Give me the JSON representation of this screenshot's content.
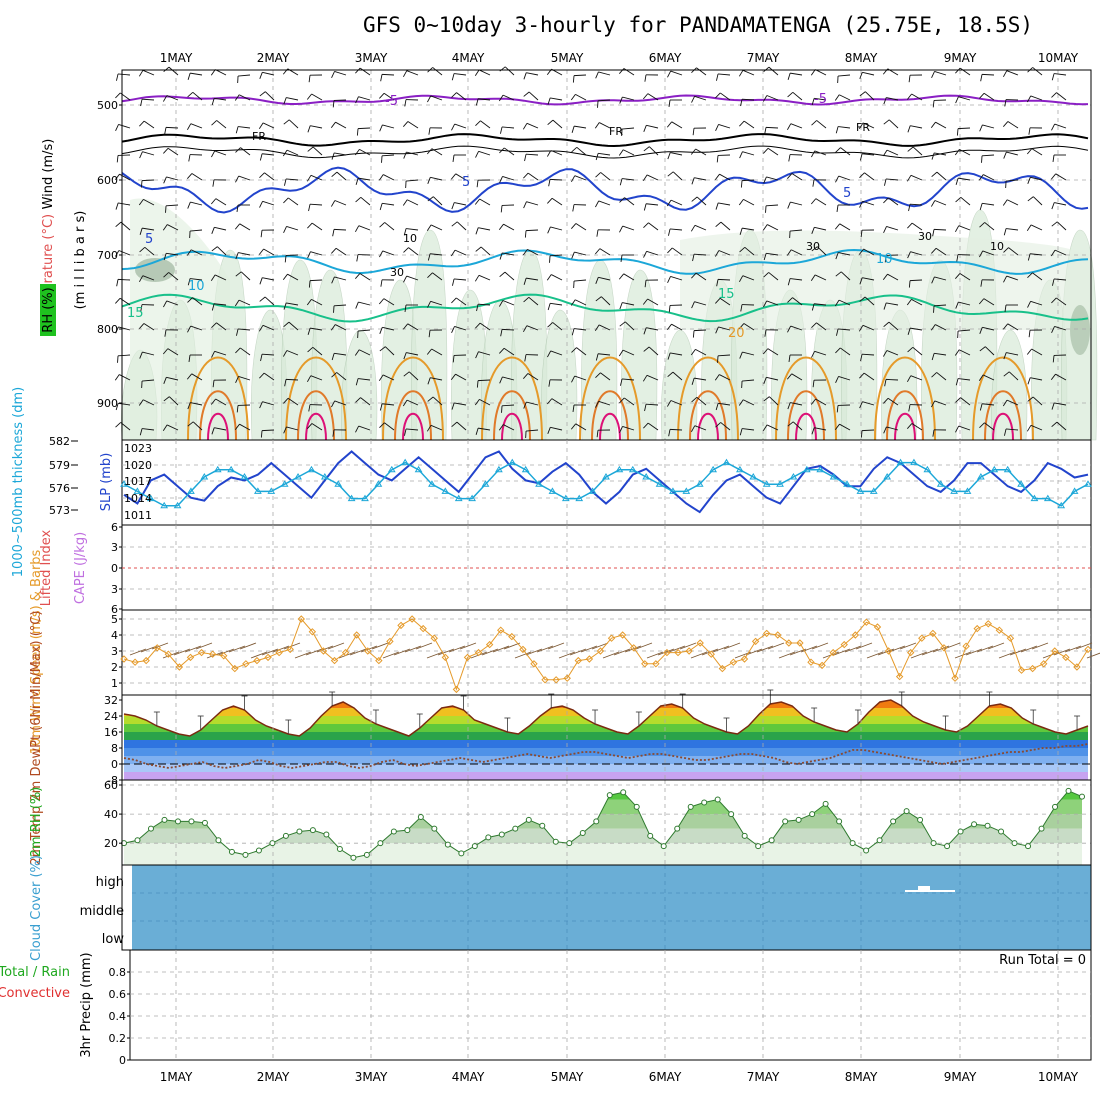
{
  "title": "GFS 0~10day 3-hourly for PANDAMATENGA (25.75E, 18.5S)",
  "dates": [
    "1MAY",
    "2MAY",
    "3MAY",
    "4MAY",
    "5MAY",
    "6MAY",
    "7MAY",
    "8MAY",
    "9MAY",
    "10MAY"
  ],
  "colors": {
    "purple": "#8a1fc4",
    "blue": "#2244cc",
    "cyan": "#1ca7d8",
    "green": "#18c08a",
    "orange": "#e59a2a",
    "magenta": "#dd1177",
    "skyblue": "#6aaed6"
  },
  "panels": {
    "upper": {
      "label_wind": "Wind (m/s)",
      "label_temp": "Temperature (°C)",
      "label_rh": "RH (%)",
      "ylabel": "(m i l l i b a r s)",
      "yticks": [
        "500",
        "600",
        "700",
        "800",
        "900"
      ],
      "contour_labels": [
        "-5",
        "FR",
        "5",
        "10",
        "15",
        "20",
        "30",
        "10"
      ]
    },
    "slp": {
      "label_thick": "1000~500mb thickness (dm)",
      "label_slp": "SLP (mb)",
      "left_ticks": [
        "582",
        "579",
        "576",
        "573"
      ],
      "right_ticks": [
        "1023",
        "1020",
        "1017",
        "1014",
        "1011"
      ]
    },
    "cape": {
      "label_li": "Lifted Index",
      "label_cape": "CAPE (J/kg)",
      "yticks": [
        "6",
        "3",
        "0",
        "3",
        "6"
      ]
    },
    "wind10": {
      "label": "10m Wind Speed (m/s) & Barbs",
      "yticks": [
        "5",
        "4",
        "3",
        "2",
        "1"
      ]
    },
    "temp2m": {
      "label": "2m Temp 2m DewPt (6hr Min/Max) (°C)",
      "yticks": [
        "32",
        "24",
        "16",
        "8",
        "0",
        "-8"
      ]
    },
    "rh2m": {
      "label": "2m RH (%)",
      "yticks": [
        "60",
        "40",
        "20"
      ]
    },
    "cloud": {
      "label": "Cloud Cover (%)",
      "yticks": [
        "high",
        "middle",
        "low"
      ]
    },
    "precip": {
      "label_a": "Total / Rain",
      "label_b": "Convective",
      "label_c": "3hr Precip (mm)",
      "run_total": "Run Total = 0",
      "yticks": [
        "0.8",
        "0.6",
        "0.4",
        "0.2",
        "0"
      ]
    }
  },
  "chart_data": [
    {
      "type": "line",
      "title": "1000~500mb thickness (dm) / SLP (mb)",
      "series": [
        {
          "name": "SLP (mb)",
          "values": [
            1013.5,
            1012,
            1016,
            1017,
            1015,
            1013,
            1012.5,
            1015,
            1016.5,
            1016,
            1017,
            1019,
            1017,
            1015,
            1013,
            1016,
            1019,
            1021,
            1019,
            1017,
            1016,
            1018,
            1020,
            1018,
            1016,
            1014,
            1017,
            1020,
            1021,
            1018,
            1016,
            1015.5,
            1017.5,
            1019,
            1017,
            1014,
            1012,
            1014,
            1017,
            1018,
            1016,
            1014,
            1012,
            1010.5,
            1013.5,
            1016,
            1017,
            1015,
            1013,
            1012,
            1015,
            1018,
            1018.5,
            1017,
            1015,
            1015,
            1018,
            1020,
            1019,
            1017,
            1015,
            1014,
            1016,
            1019,
            1019,
            1017,
            1015,
            1014,
            1016,
            1019,
            1018,
            1016.5,
            1017
          ]
        },
        {
          "name": "1000~500mb thickness (dm)",
          "values": [
            576,
            575,
            574,
            573,
            573,
            575,
            577,
            578,
            578,
            577,
            575,
            575,
            576,
            577,
            578,
            577,
            576,
            574,
            574,
            576,
            578,
            579,
            578,
            576,
            575,
            574,
            574,
            576,
            578,
            579,
            578,
            576,
            575,
            574,
            574,
            575,
            577,
            578,
            578,
            577,
            576,
            575,
            575,
            576,
            578,
            579,
            578,
            577,
            576,
            576,
            577,
            578,
            578,
            577,
            576,
            575,
            575,
            577,
            579,
            579,
            578,
            576,
            575,
            575,
            577,
            578,
            578,
            576,
            574,
            574,
            573,
            575,
            576
          ]
        }
      ]
    },
    {
      "type": "line",
      "title": "10m Wind Speed (m/s)",
      "series": [
        {
          "name": "10m Wind Speed (m/s)",
          "values": [
            2.5,
            2.3,
            2.4,
            3.2,
            2.8,
            2.0,
            2.6,
            2.9,
            2.8,
            2.7,
            1.9,
            2.2,
            2.4,
            2.6,
            2.9,
            3.1,
            5.0,
            4.2,
            3.0,
            2.4,
            2.9,
            4.0,
            3.0,
            2.4,
            3.6,
            4.6,
            5.0,
            4.4,
            3.8,
            2.6,
            0.6,
            2.6,
            2.9,
            3.4,
            4.3,
            3.9,
            3.1,
            2.2,
            1.2,
            1.2,
            1.3,
            2.4,
            2.5,
            3.0,
            3.8,
            4.0,
            3.2,
            2.2,
            2.2,
            2.9,
            2.9,
            3.0,
            3.5,
            2.8,
            1.9,
            2.3,
            2.5,
            3.6,
            4.1,
            4.0,
            3.5,
            3.5,
            2.3,
            2.1,
            2.9,
            3.4,
            4.0,
            4.8,
            4.5,
            3.0,
            1.4,
            2.9,
            3.8,
            4.1,
            3.2,
            1.3,
            3.3,
            4.4,
            4.7,
            4.3,
            3.8,
            1.8,
            1.9,
            2.2,
            3.0,
            2.6,
            2.0,
            3.1
          ]
        }
      ]
    },
    {
      "type": "area",
      "title": "2m Temp (°C)",
      "series": [
        {
          "name": "2m Temp (°C)",
          "values": [
            25,
            24,
            22,
            19,
            17,
            15,
            14,
            17,
            22,
            27,
            29,
            27,
            22,
            19,
            17,
            15,
            14,
            18,
            24,
            29,
            31,
            28,
            23,
            20,
            18,
            16,
            14,
            18,
            23,
            28,
            29,
            27,
            22,
            20,
            18,
            16,
            15,
            19,
            24,
            28,
            29,
            27,
            23,
            20,
            18,
            16,
            15,
            19,
            24,
            29,
            30,
            28,
            23,
            20,
            18,
            16,
            15,
            19,
            25,
            30,
            31,
            29,
            24,
            21,
            19,
            17,
            16,
            20,
            26,
            31,
            32,
            29,
            24,
            21,
            19,
            17,
            16,
            19,
            24,
            29,
            30,
            28,
            23,
            20,
            18,
            16,
            15,
            17,
            19
          ]
        },
        {
          "name": "2m DewPt (°C)",
          "values": [
            3,
            2,
            0,
            -1,
            -2,
            -1,
            0,
            1,
            -1,
            -2,
            -1,
            0,
            2,
            1,
            -1,
            -2,
            -1,
            0,
            1,
            1,
            -1,
            -2,
            -1,
            1,
            2,
            0,
            -1,
            0,
            1,
            2,
            3,
            2,
            1,
            2,
            3,
            4,
            5,
            4,
            3,
            4,
            5,
            6,
            6,
            5,
            4,
            3,
            4,
            5,
            5,
            4,
            3,
            2,
            2,
            3,
            4,
            5,
            5,
            4,
            3,
            1,
            0,
            1,
            2,
            3,
            5,
            7,
            7,
            6,
            5,
            4,
            3,
            2,
            1,
            0,
            1,
            2,
            3,
            4,
            5,
            6,
            6,
            7,
            8,
            8,
            9,
            9,
            10
          ]
        }
      ]
    },
    {
      "type": "area",
      "title": "2m RH (%)",
      "series": [
        {
          "name": "2m RH (%)",
          "values": [
            20,
            22,
            30,
            36,
            35,
            35,
            34,
            22,
            14,
            12,
            15,
            20,
            25,
            28,
            29,
            26,
            16,
            10,
            12,
            20,
            28,
            29,
            38,
            30,
            19,
            13,
            18,
            24,
            26,
            30,
            36,
            32,
            21,
            20,
            27,
            35,
            53,
            55,
            45,
            25,
            18,
            30,
            45,
            48,
            50,
            40,
            25,
            18,
            22,
            35,
            36,
            40,
            47,
            35,
            20,
            15,
            22,
            35,
            42,
            36,
            20,
            18,
            28,
            33,
            32,
            28,
            20,
            18,
            30,
            45,
            56,
            52
          ]
        }
      ]
    },
    {
      "type": "bar",
      "title": "3hr Precip (mm)",
      "categories": [],
      "values": [],
      "ylim": [
        0,
        1
      ]
    }
  ]
}
